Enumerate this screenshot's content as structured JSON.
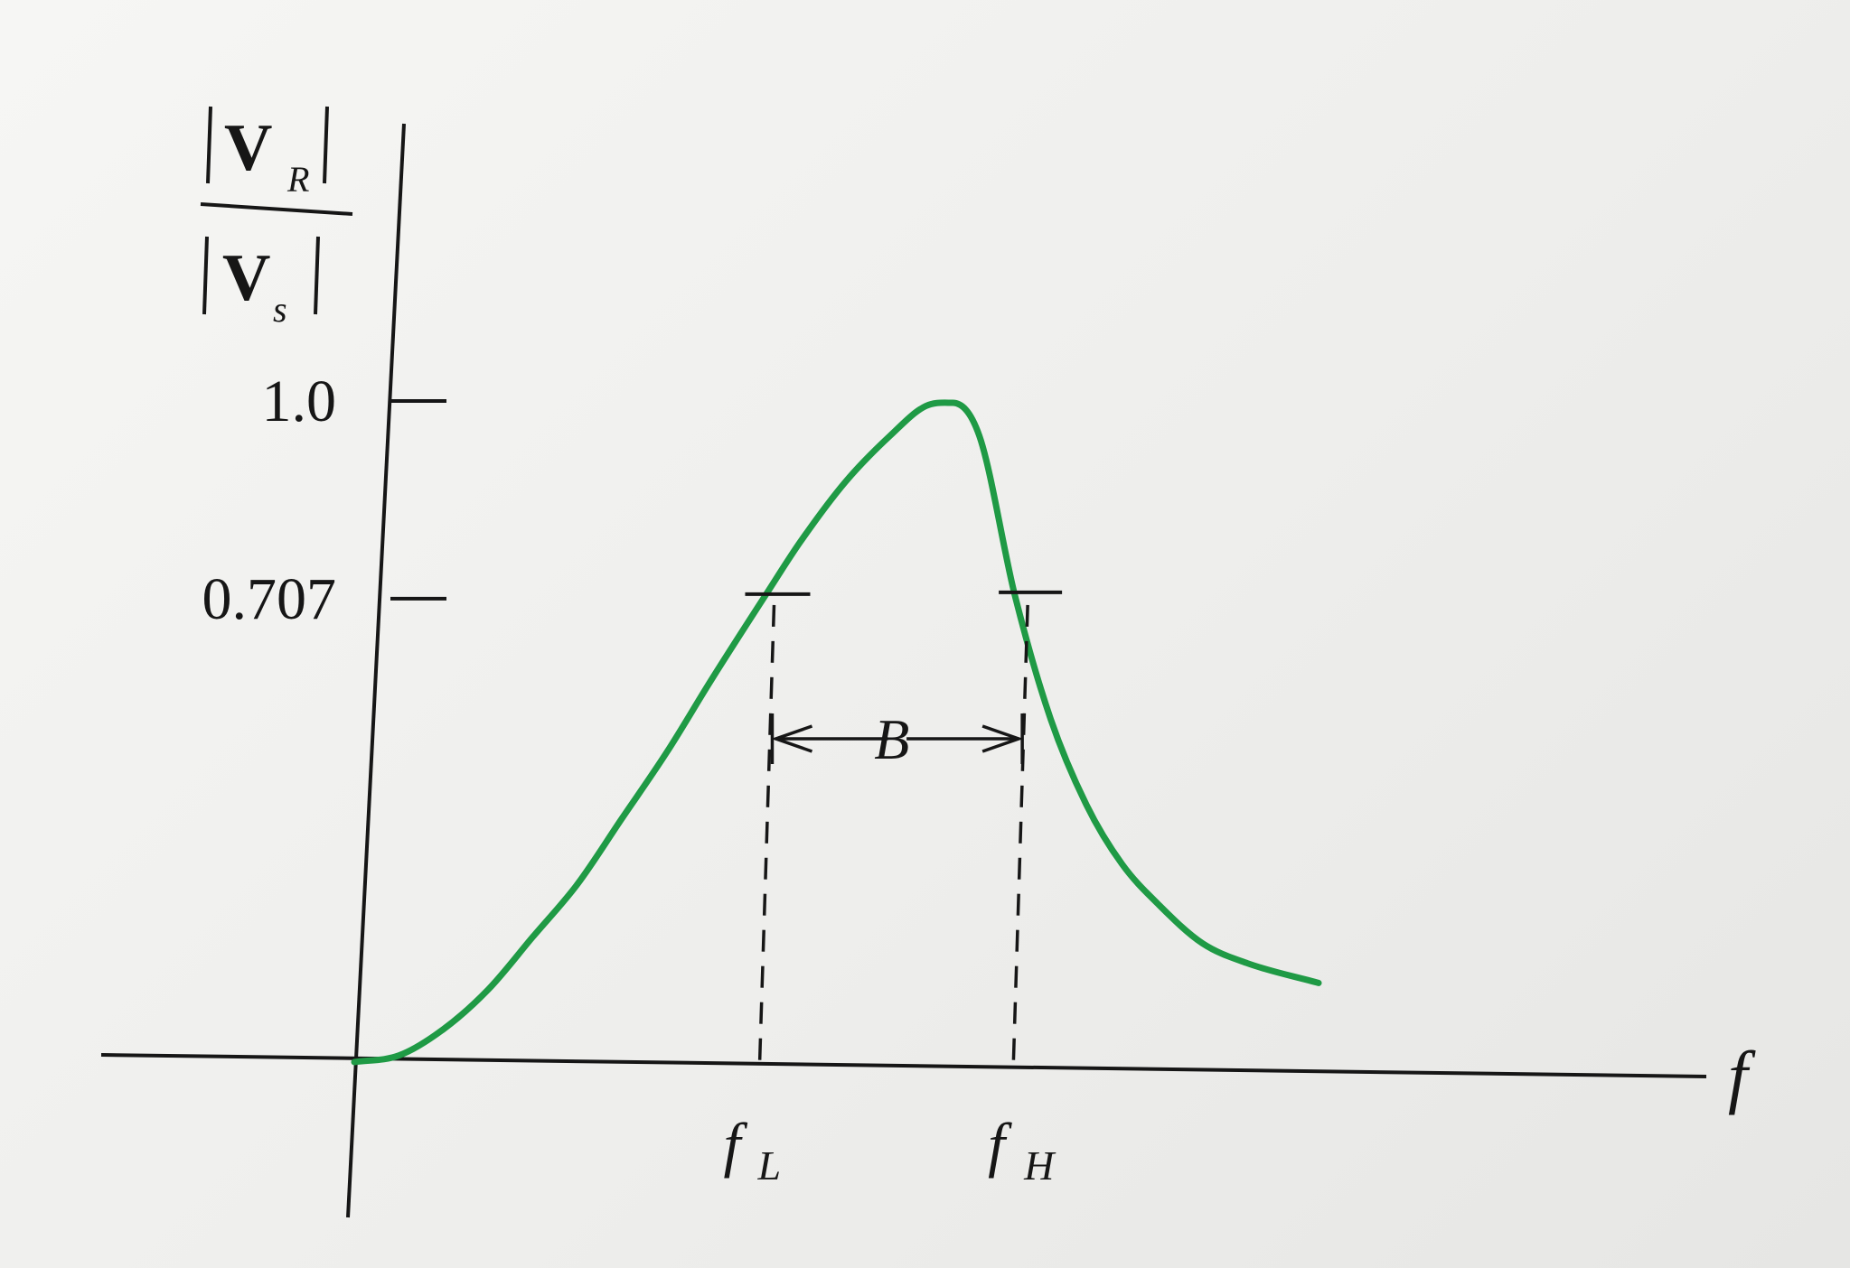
{
  "chart_data": {
    "type": "line",
    "title": "",
    "xlabel": "f",
    "ylabel": {
      "numerator": {
        "main": "V",
        "sub": "R"
      },
      "denominator": {
        "main": "V",
        "sub": "s"
      }
    },
    "ylim": [
      0,
      1.0
    ],
    "y_ticks": [
      {
        "label": "1.0",
        "value": 1.0
      },
      {
        "label": "0.707",
        "value": 0.707
      }
    ],
    "x_markers": [
      {
        "name": "f_L",
        "main": "f",
        "sub": "L",
        "value": 0.46
      },
      {
        "name": "f_H",
        "main": "f",
        "sub": "H",
        "value": 0.74
      }
    ],
    "bandwidth_label": "B",
    "half_power_level": 0.707,
    "series": [
      {
        "color": "#1f9a45",
        "x": [
          0.0,
          0.05,
          0.1,
          0.15,
          0.2,
          0.25,
          0.3,
          0.35,
          0.4,
          0.46,
          0.5,
          0.55,
          0.6,
          0.64,
          0.67,
          0.7,
          0.74,
          0.78,
          0.82,
          0.86,
          0.9,
          0.95,
          1.0,
          1.08
        ],
        "y": [
          0.0,
          0.01,
          0.05,
          0.11,
          0.19,
          0.27,
          0.37,
          0.47,
          0.58,
          0.707,
          0.79,
          0.88,
          0.95,
          0.995,
          1.0,
          0.95,
          0.707,
          0.52,
          0.39,
          0.3,
          0.24,
          0.18,
          0.15,
          0.12
        ]
      }
    ]
  }
}
